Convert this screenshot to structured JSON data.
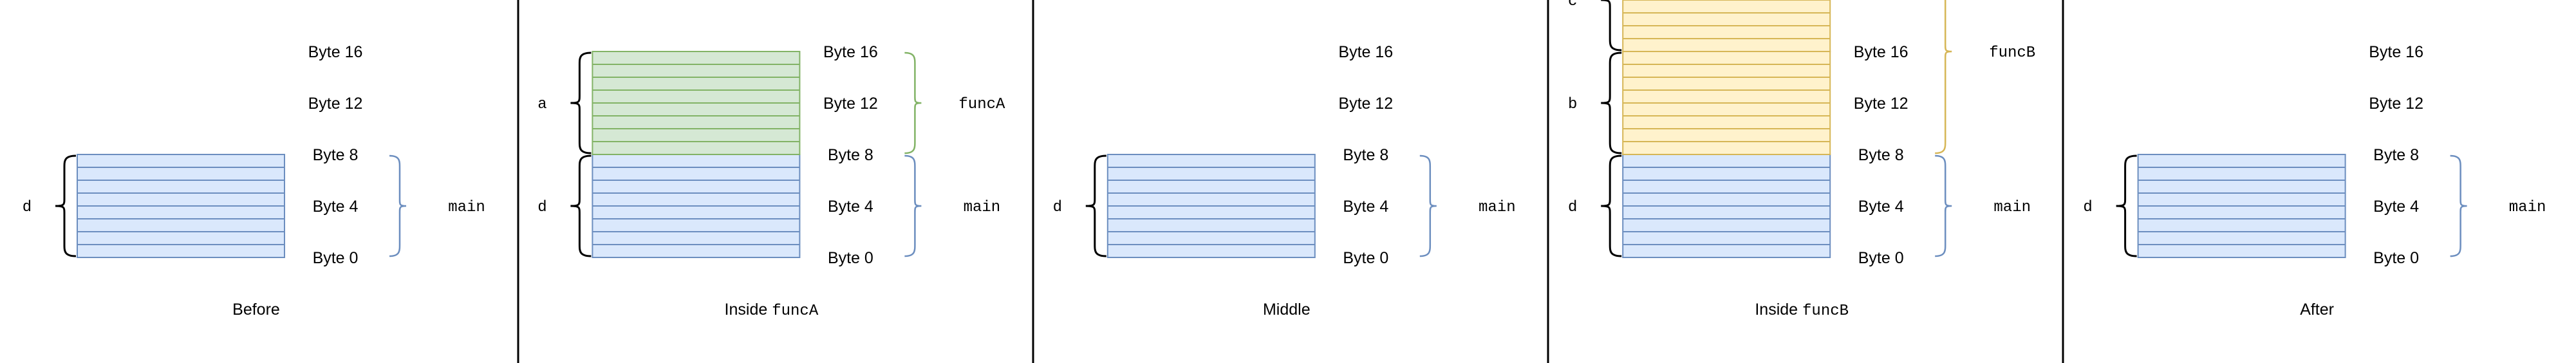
{
  "panels": [
    {
      "caption": "Before",
      "caption_fn": "",
      "byte_labels": [
        "Byte 16",
        "Byte 12",
        "Byte 8",
        "Byte 4",
        "Byte 0"
      ],
      "blocks": [
        {
          "var": "d",
          "color": "blue",
          "from_byte": 0,
          "to_byte": 8
        }
      ],
      "frames": [
        {
          "name": "main",
          "from_byte": 0,
          "to_byte": 8,
          "color": "blue"
        }
      ]
    },
    {
      "caption": "Inside ",
      "caption_fn": "funcA",
      "byte_labels": [
        "Byte 16",
        "Byte 12",
        "Byte 8",
        "Byte 4",
        "Byte 0"
      ],
      "blocks": [
        {
          "var": "d",
          "color": "blue",
          "from_byte": 0,
          "to_byte": 8
        },
        {
          "var": "a",
          "color": "green",
          "from_byte": 8,
          "to_byte": 16
        }
      ],
      "frames": [
        {
          "name": "main",
          "from_byte": 0,
          "to_byte": 8,
          "color": "blue"
        },
        {
          "name": "funcA",
          "from_byte": 8,
          "to_byte": 16,
          "color": "green"
        }
      ]
    },
    {
      "caption": "Middle",
      "caption_fn": "",
      "byte_labels": [
        "Byte 16",
        "Byte 12",
        "Byte 8",
        "Byte 4",
        "Byte 0"
      ],
      "blocks": [
        {
          "var": "d",
          "color": "blue",
          "from_byte": 0,
          "to_byte": 8
        }
      ],
      "frames": [
        {
          "name": "main",
          "from_byte": 0,
          "to_byte": 8,
          "color": "blue"
        }
      ]
    },
    {
      "caption": "Inside ",
      "caption_fn": "funcB",
      "byte_labels": [
        "Byte 16",
        "Byte 12",
        "Byte 8",
        "Byte 4",
        "Byte 0"
      ],
      "blocks": [
        {
          "var": "d",
          "color": "blue",
          "from_byte": 0,
          "to_byte": 8
        },
        {
          "var": "b",
          "color": "orange",
          "from_byte": 8,
          "to_byte": 16
        },
        {
          "var": "c",
          "color": "orange",
          "from_byte": 16,
          "to_byte": 24
        }
      ],
      "frames": [
        {
          "name": "main",
          "from_byte": 0,
          "to_byte": 8,
          "color": "blue"
        },
        {
          "name": "funcB",
          "from_byte": 8,
          "to_byte": 24,
          "color": "orange"
        }
      ]
    },
    {
      "caption": "After",
      "caption_fn": "",
      "byte_labels": [
        "Byte 16",
        "Byte 12",
        "Byte 8",
        "Byte 4",
        "Byte 0"
      ],
      "blocks": [
        {
          "var": "d",
          "color": "blue",
          "from_byte": 0,
          "to_byte": 8
        }
      ],
      "frames": [
        {
          "name": "main",
          "from_byte": 0,
          "to_byte": 8,
          "color": "blue"
        }
      ]
    }
  ],
  "colors": {
    "blue": {
      "fill": "#dae8fc",
      "stroke": "#6c8ebf"
    },
    "green": {
      "fill": "#d5e8d4",
      "stroke": "#82b366"
    },
    "orange": {
      "fill": "#fff2cc",
      "stroke": "#d6b656"
    },
    "divider": "#000000",
    "brace": "#000000"
  }
}
